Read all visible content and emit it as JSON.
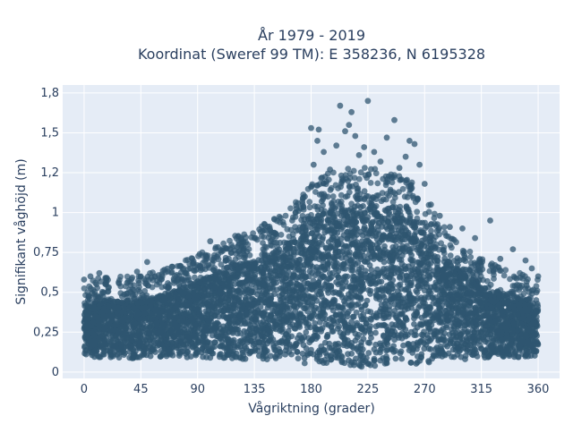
{
  "chart_data": {
    "type": "scatter",
    "title_lines": [
      "År 1979 - 2019",
      "Koordinat (Sweref 99 TM): E 358236, N 6195328"
    ],
    "xlabel": "Vågriktning (grader)",
    "ylabel": "Signifikant våghöjd (m)",
    "xlim": [
      -17,
      377
    ],
    "ylim": [
      -0.04,
      1.8
    ],
    "x_ticks": [
      0,
      45,
      90,
      135,
      180,
      225,
      270,
      315,
      360
    ],
    "x_tick_labels": [
      "0",
      "45",
      "90",
      "135",
      "180",
      "225",
      "270",
      "315",
      "360"
    ],
    "y_ticks": [
      0,
      0.25,
      0.5,
      0.75,
      1.0,
      1.25,
      1.5,
      1.75
    ],
    "y_tick_labels": [
      "0",
      "0,25",
      "0,5",
      "0,75",
      "1",
      "1,2",
      "1,5",
      "1,8"
    ],
    "grid": true,
    "marker_color": "#2f5570",
    "plot_bg": "#e5ecf6",
    "envelope": {
      "x": [
        0,
        10,
        20,
        30,
        45,
        60,
        75,
        90,
        105,
        120,
        135,
        150,
        165,
        175,
        185,
        195,
        205,
        215,
        225,
        235,
        245,
        255,
        265,
        275,
        285,
        300,
        315,
        330,
        345,
        360
      ],
      "y_min": [
        0.08,
        0.07,
        0.07,
        0.07,
        0.06,
        0.07,
        0.07,
        0.07,
        0.06,
        0.06,
        0.06,
        0.05,
        0.04,
        0.03,
        0.03,
        0.02,
        0.02,
        0.01,
        0.01,
        0.02,
        0.02,
        0.03,
        0.03,
        0.04,
        0.05,
        0.06,
        0.06,
        0.07,
        0.07,
        0.08
      ],
      "y_max_dense": [
        0.42,
        0.44,
        0.45,
        0.45,
        0.46,
        0.48,
        0.52,
        0.57,
        0.62,
        0.67,
        0.71,
        0.76,
        0.83,
        0.92,
        0.98,
        1.01,
        1.03,
        1.04,
        1.05,
        1.03,
        1.02,
        0.99,
        0.93,
        0.84,
        0.72,
        0.62,
        0.55,
        0.5,
        0.47,
        0.43
      ]
    },
    "outliers": [
      {
        "x": 0,
        "y": 0.58
      },
      {
        "x": 5,
        "y": 0.6
      },
      {
        "x": 12,
        "y": 0.62
      },
      {
        "x": 18,
        "y": 0.59
      },
      {
        "x": 35,
        "y": 0.57
      },
      {
        "x": 42,
        "y": 0.63
      },
      {
        "x": 50,
        "y": 0.69
      },
      {
        "x": 62,
        "y": 0.6
      },
      {
        "x": 70,
        "y": 0.66
      },
      {
        "x": 80,
        "y": 0.62
      },
      {
        "x": 100,
        "y": 0.82
      },
      {
        "x": 110,
        "y": 0.76
      },
      {
        "x": 125,
        "y": 0.83
      },
      {
        "x": 135,
        "y": 0.84
      },
      {
        "x": 140,
        "y": 0.88
      },
      {
        "x": 150,
        "y": 0.85
      },
      {
        "x": 165,
        "y": 0.95
      },
      {
        "x": 170,
        "y": 1.01
      },
      {
        "x": 175,
        "y": 1.1
      },
      {
        "x": 180,
        "y": 1.16
      },
      {
        "x": 182,
        "y": 1.3
      },
      {
        "x": 185,
        "y": 1.45
      },
      {
        "x": 180,
        "y": 1.53
      },
      {
        "x": 186,
        "y": 1.52
      },
      {
        "x": 190,
        "y": 1.38
      },
      {
        "x": 195,
        "y": 1.27
      },
      {
        "x": 200,
        "y": 1.42
      },
      {
        "x": 203,
        "y": 1.67
      },
      {
        "x": 207,
        "y": 1.51
      },
      {
        "x": 210,
        "y": 1.55
      },
      {
        "x": 212,
        "y": 1.63
      },
      {
        "x": 215,
        "y": 1.48
      },
      {
        "x": 218,
        "y": 1.36
      },
      {
        "x": 222,
        "y": 1.41
      },
      {
        "x": 225,
        "y": 1.7
      },
      {
        "x": 230,
        "y": 1.38
      },
      {
        "x": 235,
        "y": 1.32
      },
      {
        "x": 240,
        "y": 1.47
      },
      {
        "x": 246,
        "y": 1.58
      },
      {
        "x": 250,
        "y": 1.28
      },
      {
        "x": 255,
        "y": 1.35
      },
      {
        "x": 258,
        "y": 1.45
      },
      {
        "x": 262,
        "y": 1.43
      },
      {
        "x": 266,
        "y": 1.3
      },
      {
        "x": 270,
        "y": 1.18
      },
      {
        "x": 275,
        "y": 1.05
      },
      {
        "x": 282,
        "y": 0.98
      },
      {
        "x": 290,
        "y": 0.91
      },
      {
        "x": 300,
        "y": 0.9
      },
      {
        "x": 310,
        "y": 0.84
      },
      {
        "x": 322,
        "y": 0.95
      },
      {
        "x": 330,
        "y": 0.71
      },
      {
        "x": 340,
        "y": 0.77
      },
      {
        "x": 350,
        "y": 0.7
      },
      {
        "x": 355,
        "y": 0.65
      },
      {
        "x": 360,
        "y": 0.6
      }
    ]
  }
}
